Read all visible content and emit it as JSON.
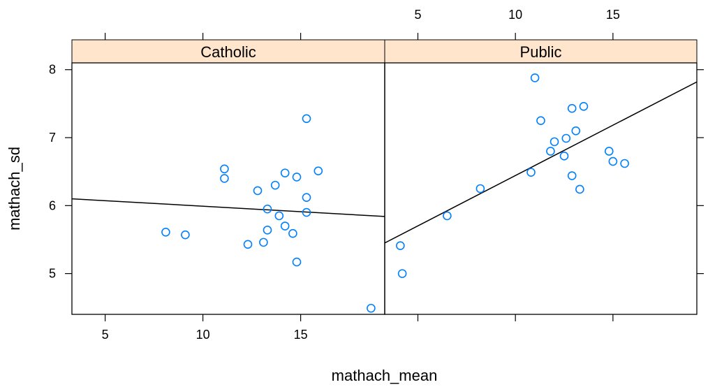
{
  "chart_data": {
    "type": "scatter",
    "title": "",
    "xlabel": "mathach_mean",
    "ylabel": "mathach_sd",
    "xlim": [
      3.3,
      19.3
    ],
    "ylim": [
      4.4,
      8.1
    ],
    "x_ticks": [
      5,
      10,
      15
    ],
    "y_ticks": [
      5,
      6,
      7,
      8
    ],
    "grid": false,
    "point_color": "#0080ff",
    "strip_color": "#ffe5cc",
    "panels": [
      {
        "name": "Catholic",
        "points": [
          {
            "x": 8.1,
            "y": 5.61
          },
          {
            "x": 9.1,
            "y": 5.57
          },
          {
            "x": 11.1,
            "y": 6.54
          },
          {
            "x": 11.1,
            "y": 6.4
          },
          {
            "x": 12.3,
            "y": 5.43
          },
          {
            "x": 12.8,
            "y": 6.22
          },
          {
            "x": 13.1,
            "y": 5.46
          },
          {
            "x": 13.3,
            "y": 5.95
          },
          {
            "x": 13.3,
            "y": 5.64
          },
          {
            "x": 13.7,
            "y": 6.3
          },
          {
            "x": 13.9,
            "y": 5.85
          },
          {
            "x": 14.2,
            "y": 6.48
          },
          {
            "x": 14.2,
            "y": 5.7
          },
          {
            "x": 14.6,
            "y": 5.59
          },
          {
            "x": 14.8,
            "y": 6.42
          },
          {
            "x": 14.8,
            "y": 5.17
          },
          {
            "x": 15.3,
            "y": 7.28
          },
          {
            "x": 15.3,
            "y": 6.12
          },
          {
            "x": 15.3,
            "y": 5.9
          },
          {
            "x": 15.9,
            "y": 6.51
          },
          {
            "x": 18.6,
            "y": 4.49
          }
        ],
        "fit_line": {
          "x": [
            3.3,
            19.3
          ],
          "y": [
            6.1,
            5.84
          ]
        }
      },
      {
        "name": "Public",
        "points": [
          {
            "x": 4.1,
            "y": 5.41
          },
          {
            "x": 4.2,
            "y": 5.0
          },
          {
            "x": 6.5,
            "y": 5.85
          },
          {
            "x": 8.2,
            "y": 6.25
          },
          {
            "x": 10.8,
            "y": 6.49
          },
          {
            "x": 11.0,
            "y": 7.88
          },
          {
            "x": 11.3,
            "y": 7.25
          },
          {
            "x": 11.8,
            "y": 6.8
          },
          {
            "x": 12.0,
            "y": 6.94
          },
          {
            "x": 12.5,
            "y": 6.73
          },
          {
            "x": 12.6,
            "y": 6.99
          },
          {
            "x": 12.9,
            "y": 7.43
          },
          {
            "x": 12.9,
            "y": 6.44
          },
          {
            "x": 13.1,
            "y": 7.1
          },
          {
            "x": 13.3,
            "y": 6.24
          },
          {
            "x": 13.5,
            "y": 7.46
          },
          {
            "x": 14.8,
            "y": 6.8
          },
          {
            "x": 15.0,
            "y": 6.65
          },
          {
            "x": 15.6,
            "y": 6.62
          }
        ],
        "fit_line": {
          "x": [
            3.3,
            19.3
          ],
          "y": [
            5.45,
            7.82
          ]
        }
      }
    ]
  }
}
